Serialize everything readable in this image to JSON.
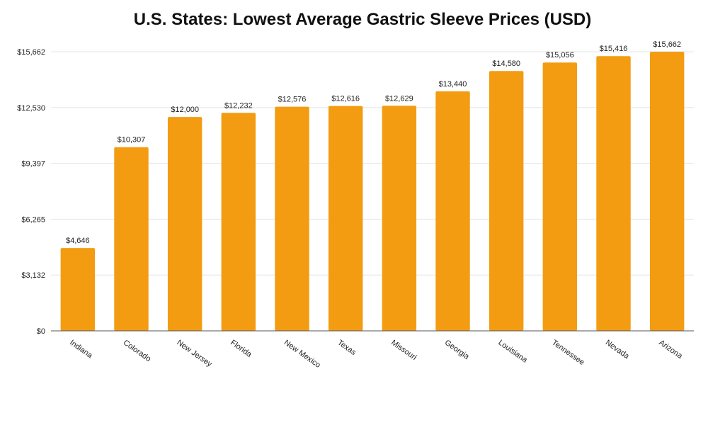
{
  "chart_data": {
    "type": "bar",
    "title": "U.S. States: Lowest Average Gastric Sleeve Prices (USD)",
    "xlabel": "",
    "ylabel": "",
    "categories": [
      "Indiana",
      "Colorado",
      "New Jersey",
      "Florida",
      "New Mexico",
      "Texas",
      "Missouri",
      "Georgia",
      "Louisiana",
      "Tennessee",
      "Nevada",
      "Arizona"
    ],
    "values": [
      4646,
      10307,
      12000,
      12232,
      12576,
      12616,
      12629,
      13440,
      14580,
      15056,
      15416,
      15662
    ],
    "value_labels": [
      "$4,646",
      "$10,307",
      "$12,000",
      "$12,232",
      "$12,576",
      "$12,616",
      "$12,629",
      "$13,440",
      "$14,580",
      "$15,056",
      "$15,416",
      "$15,662"
    ],
    "ylim": [
      0,
      15662
    ],
    "yticks": [
      0,
      3132,
      6265,
      9397,
      12530,
      15662
    ],
    "ytick_labels": [
      "$0",
      "$3,132",
      "$6,265",
      "$9,397",
      "$12,530",
      "$15,662"
    ],
    "grid": true,
    "legend": "none",
    "bar_color": "#F39C12"
  }
}
